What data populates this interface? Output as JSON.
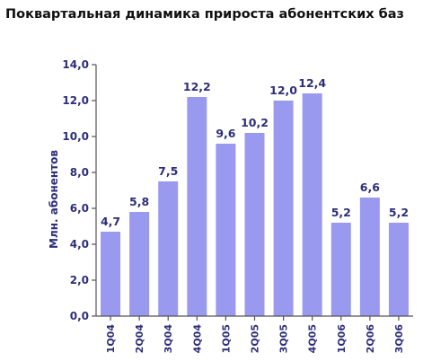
{
  "chart_data": {
    "type": "bar",
    "title": "Поквартальная динамика прироста абонентских баз",
    "xlabel": "",
    "ylabel": "Млн. абонентов",
    "categories": [
      "1Q04",
      "2Q04",
      "3Q04",
      "4Q04",
      "1Q05",
      "2Q05",
      "3Q05",
      "4Q05",
      "1Q06",
      "2Q06",
      "3Q06"
    ],
    "values": [
      4.7,
      5.8,
      7.5,
      12.2,
      9.6,
      10.2,
      12.0,
      12.4,
      5.2,
      6.6,
      5.2
    ],
    "value_labels": [
      "4,7",
      "5,8",
      "7,5",
      "12,2",
      "9,6",
      "10,2",
      "12,0",
      "12,4",
      "5,2",
      "6,6",
      "5,2"
    ],
    "ylim": [
      0,
      14
    ],
    "yticks": [
      0,
      2,
      4,
      6,
      8,
      10,
      12,
      14
    ],
    "ytick_labels": [
      "0,0",
      "2,0",
      "4,0",
      "6,0",
      "8,0",
      "10,0",
      "12,0",
      "14,0"
    ],
    "grid": false,
    "legend": "none",
    "bar_color": "#9999f0",
    "axis_color": "#555555",
    "text_color": "#2e2e7a"
  }
}
